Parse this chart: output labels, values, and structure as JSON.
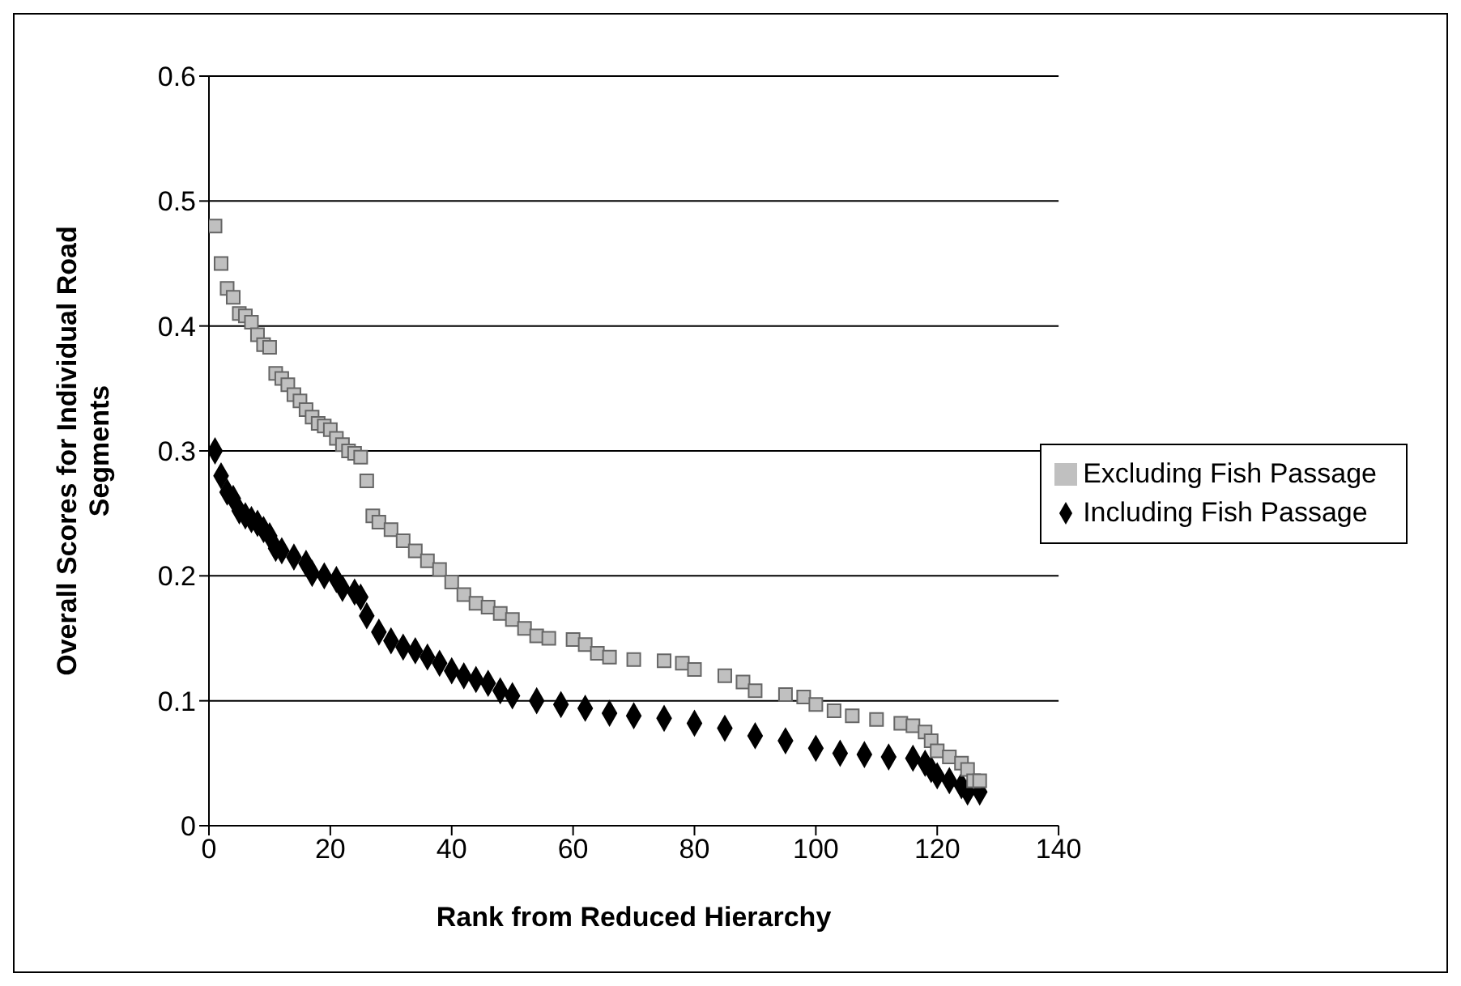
{
  "chart_data": {
    "type": "scatter",
    "xlabel": "Rank from Reduced Hierarchy",
    "ylabel": "Overall Scores for Individual Road Segments",
    "xlim": [
      0,
      140
    ],
    "xticks": [
      0,
      20,
      40,
      60,
      80,
      100,
      120,
      140
    ],
    "ylim": [
      0,
      0.6
    ],
    "yticks": [
      0,
      0.1,
      0.2,
      0.3,
      0.4,
      0.5,
      0.6
    ],
    "grid": "y",
    "legend": "right",
    "series": [
      {
        "name": "Including Fish Passage",
        "color": "#000000",
        "marker": "diamond",
        "x": [
          1,
          2,
          3,
          4,
          5,
          6,
          7,
          8,
          9,
          10,
          11,
          12,
          14,
          16,
          17,
          19,
          21,
          22,
          24,
          25,
          26,
          28,
          30,
          32,
          34,
          36,
          38,
          40,
          42,
          44,
          46,
          48,
          50,
          54,
          58,
          62,
          66,
          70,
          75,
          80,
          85,
          90,
          95,
          100,
          104,
          108,
          112,
          116,
          118,
          119,
          120,
          122,
          124,
          125,
          127
        ],
        "values": [
          0.3,
          0.28,
          0.267,
          0.262,
          0.252,
          0.248,
          0.245,
          0.242,
          0.237,
          0.232,
          0.222,
          0.22,
          0.215,
          0.21,
          0.202,
          0.2,
          0.197,
          0.19,
          0.187,
          0.183,
          0.168,
          0.155,
          0.148,
          0.143,
          0.14,
          0.135,
          0.13,
          0.124,
          0.12,
          0.117,
          0.114,
          0.108,
          0.104,
          0.1,
          0.097,
          0.094,
          0.09,
          0.088,
          0.086,
          0.082,
          0.078,
          0.072,
          0.068,
          0.062,
          0.058,
          0.057,
          0.055,
          0.054,
          0.05,
          0.045,
          0.04,
          0.036,
          0.032,
          0.027,
          0.027
        ]
      },
      {
        "name": "Excluding Fish Passage",
        "color": "#c0c0c0",
        "marker": "square",
        "x": [
          1,
          2,
          3,
          4,
          5,
          6,
          7,
          8,
          9,
          10,
          11,
          12,
          13,
          14,
          15,
          16,
          17,
          18,
          19,
          20,
          21,
          22,
          23,
          24,
          25,
          26,
          27,
          28,
          30,
          32,
          34,
          36,
          38,
          40,
          42,
          44,
          46,
          48,
          50,
          52,
          54,
          56,
          60,
          62,
          64,
          66,
          70,
          75,
          78,
          80,
          85,
          88,
          90,
          95,
          98,
          100,
          103,
          106,
          110,
          114,
          116,
          118,
          119,
          120,
          122,
          124,
          125,
          126,
          127
        ],
        "values": [
          0.48,
          0.45,
          0.43,
          0.423,
          0.41,
          0.408,
          0.403,
          0.393,
          0.385,
          0.383,
          0.362,
          0.358,
          0.353,
          0.345,
          0.34,
          0.333,
          0.327,
          0.322,
          0.32,
          0.317,
          0.31,
          0.305,
          0.3,
          0.298,
          0.295,
          0.276,
          0.248,
          0.243,
          0.237,
          0.228,
          0.22,
          0.212,
          0.205,
          0.195,
          0.185,
          0.178,
          0.175,
          0.17,
          0.165,
          0.158,
          0.152,
          0.15,
          0.149,
          0.145,
          0.138,
          0.135,
          0.133,
          0.132,
          0.13,
          0.125,
          0.12,
          0.115,
          0.108,
          0.105,
          0.103,
          0.097,
          0.092,
          0.088,
          0.085,
          0.082,
          0.08,
          0.075,
          0.068,
          0.06,
          0.055,
          0.05,
          0.045,
          0.036,
          0.036
        ]
      }
    ]
  }
}
